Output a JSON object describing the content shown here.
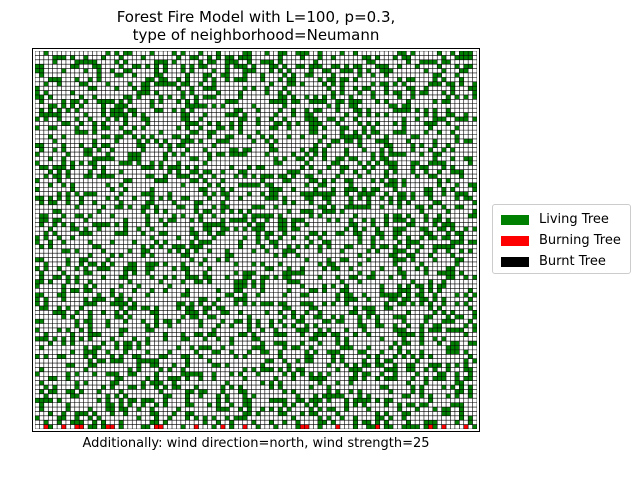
{
  "chart_data": {
    "type": "heatmap",
    "title": "Forest Fire Model with L=100, p=0.3,\ntype of neighborhood=Neumann",
    "xlabel": "Additionally: wind direction=north, wind strength=25",
    "ylabel": "",
    "lattice_size": 100,
    "displayed_grid": {
      "columns": 100,
      "rows": 86
    },
    "tree_density_p": 0.3,
    "neighborhood": "Neumann",
    "wind": {
      "direction": "north",
      "strength": 25
    },
    "states": [
      "empty",
      "living",
      "burning",
      "burnt"
    ],
    "state_counts_approx": {
      "living": 2560,
      "burning": 18,
      "burnt": 0
    },
    "burning_row": "bottom",
    "burning_columns_approx": [
      2,
      6,
      9,
      10,
      16,
      17,
      27,
      28,
      36,
      42,
      47,
      60,
      61,
      68,
      77,
      89,
      92,
      97
    ],
    "grid_lines": true,
    "legend_position": "right",
    "legend": [
      {
        "label": "Living Tree",
        "color": "#008000"
      },
      {
        "label": "Burning Tree",
        "color": "#ff0000"
      },
      {
        "label": "Burnt Tree",
        "color": "#000000"
      }
    ]
  }
}
